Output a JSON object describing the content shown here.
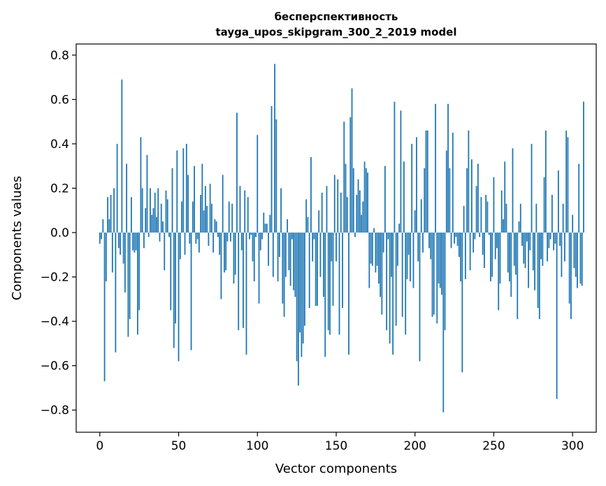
{
  "chart_data": {
    "type": "bar",
    "title": "бесперспективность",
    "subtitle": "tayga_upos_skipgram_300_2_2019 model",
    "xlabel": "Vector components",
    "ylabel": "Components values",
    "xlim": [
      -15,
      315
    ],
    "ylim": [
      -0.9,
      0.85
    ],
    "xticks": [
      0,
      50,
      100,
      150,
      200,
      250,
      300
    ],
    "xtick_labels": [
      "0",
      "50",
      "100",
      "150",
      "200",
      "250",
      "300"
    ],
    "yticks": [
      -0.8,
      -0.6,
      -0.4,
      -0.2,
      0.0,
      0.2,
      0.4,
      0.6,
      0.8
    ],
    "ytick_labels": [
      "−0.8",
      "−0.6",
      "−0.4",
      "−0.2",
      "0.0",
      "0.2",
      "0.4",
      "0.6",
      "0.8"
    ],
    "grid": false,
    "bar_color": "#1f77b4",
    "values": [
      -0.05,
      -0.03,
      0.06,
      -0.67,
      -0.22,
      0.16,
      0.06,
      0.17,
      -0.18,
      0.2,
      -0.54,
      0.4,
      -0.07,
      -0.1,
      0.69,
      -0.14,
      -0.27,
      0.31,
      -0.47,
      -0.39,
      0.16,
      -0.08,
      -0.09,
      -0.08,
      -0.46,
      -0.35,
      0.43,
      0.2,
      -0.07,
      0.11,
      0.35,
      -0.02,
      0.2,
      0.08,
      0.11,
      0.18,
      0.07,
      0.2,
      -0.04,
      0.13,
      0.05,
      -0.17,
      0.19,
      0.15,
      -0.02,
      -0.35,
      0.29,
      -0.52,
      -0.41,
      0.37,
      -0.58,
      -0.12,
      0.14,
      0.38,
      -0.1,
      0.4,
      0.26,
      -0.05,
      -0.53,
      0.14,
      0.3,
      -0.05,
      -0.03,
      -0.09,
      0.17,
      0.31,
      0.1,
      0.21,
      0.12,
      -0.06,
      0.22,
      0.13,
      -0.09,
      0.06,
      0.05,
      -0.02,
      -0.1,
      -0.3,
      0.26,
      -0.18,
      -0.17,
      -0.04,
      0.14,
      -0.04,
      0.13,
      -0.23,
      -0.19,
      0.54,
      -0.44,
      0.21,
      -0.08,
      -0.43,
      0.19,
      -0.55,
      0.16,
      -0.03,
      -0.01,
      -0.13,
      -0.22,
      -0.02,
      0.44,
      -0.32,
      -0.08,
      -0.03,
      0.09,
      0.04,
      0.04,
      -0.15,
      0.08,
      0.57,
      -0.2,
      0.76,
      0.51,
      -0.22,
      -0.11,
      0.2,
      -0.32,
      -0.38,
      -0.2,
      0.06,
      -0.17,
      -0.24,
      -0.03,
      -0.26,
      -0.29,
      -0.58,
      -0.69,
      -0.45,
      -0.56,
      -0.5,
      -0.42,
      0.15,
      0.07,
      -0.34,
      0.34,
      -0.13,
      -0.03,
      -0.33,
      -0.33,
      0.1,
      -0.2,
      0.18,
      -0.29,
      -0.56,
      0.21,
      -0.44,
      -0.46,
      -0.13,
      -0.33,
      0.26,
      -0.13,
      0.24,
      -0.46,
      0.18,
      -0.34,
      0.5,
      0.31,
      0.16,
      -0.55,
      0.52,
      0.65,
      0.29,
      -0.02,
      0.17,
      0.24,
      0.19,
      0.08,
      0.14,
      0.32,
      0.29,
      0.27,
      -0.25,
      -0.14,
      -0.15,
      0.02,
      -0.18,
      -0.15,
      -0.23,
      -0.29,
      -0.37,
      -0.09,
      0.3,
      -0.44,
      -0.03,
      -0.5,
      -0.2,
      -0.55,
      0.59,
      -0.42,
      -0.15,
      0.04,
      0.55,
      -0.38,
      0.32,
      -0.46,
      -0.21,
      -0.1,
      -0.22,
      0.4,
      -0.25,
      0.1,
      0.43,
      -0.13,
      -0.58,
      0.15,
      -0.09,
      0.29,
      0.46,
      0.46,
      -0.07,
      -0.12,
      -0.38,
      -0.37,
      0.58,
      -0.41,
      -0.23,
      -0.25,
      -0.28,
      -0.81,
      -0.44,
      0.37,
      0.58,
      0.29,
      -0.07,
      0.45,
      -0.05,
      -0.02,
      -0.06,
      -0.11,
      -0.22,
      -0.63,
      0.12,
      -0.21,
      0.29,
      0.46,
      -0.17,
      0.33,
      -0.09,
      -0.03,
      0.21,
      0.31,
      -0.02,
      0.16,
      -0.1,
      -0.16,
      0.17,
      0.14,
      -0.01,
      -0.22,
      -0.2,
      0.25,
      -0.12,
      -0.07,
      -0.35,
      -0.23,
      0.19,
      0.06,
      0.32,
      0.13,
      -0.18,
      -0.22,
      -0.29,
      0.38,
      -0.15,
      -0.19,
      -0.39,
      0.05,
      0.13,
      -0.06,
      -0.14,
      -0.16,
      -0.04,
      -0.25,
      -0.08,
      0.4,
      -0.17,
      -0.26,
      0.13,
      -0.34,
      -0.39,
      -0.12,
      -0.15,
      0.25,
      0.46,
      -0.13,
      -0.07,
      -0.03,
      0.17,
      -0.08,
      -0.05,
      -0.75,
      0.28,
      -0.06,
      -0.2,
      0.13,
      -0.13,
      0.46,
      0.43,
      -0.32,
      -0.39,
      0.08,
      -0.16,
      -0.2,
      -0.25,
      0.31,
      -0.23,
      -0.24,
      0.59
    ]
  }
}
